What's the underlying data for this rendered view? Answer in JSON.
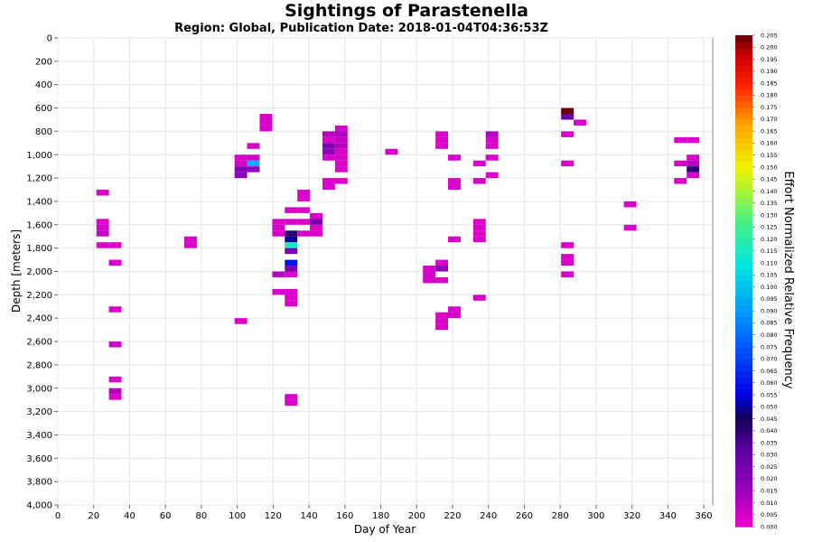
{
  "chart_data": {
    "type": "heatmap",
    "title": "Sightings of Parastenella",
    "subtitle": "Region: Global, Publication Date: 2018-01-04T04:36:53Z",
    "xlabel": "Day of Year",
    "ylabel": "Depth [meters]",
    "xlim": [
      0,
      365
    ],
    "ylim": [
      0,
      4000
    ],
    "x_ticks": [
      "0",
      "20",
      "40",
      "60",
      "80",
      "100",
      "120",
      "140",
      "160",
      "180",
      "200",
      "220",
      "240",
      "260",
      "280",
      "300",
      "320",
      "340",
      "360"
    ],
    "y_ticks": [
      "0",
      "200",
      "400",
      "600",
      "800",
      "1,000",
      "1,200",
      "1,400",
      "1,600",
      "1,800",
      "2,000",
      "2,200",
      "2,400",
      "2,600",
      "2,800",
      "3,000",
      "3,200",
      "3,400",
      "3,600",
      "3,800",
      "4,000"
    ],
    "colorbar": {
      "label": "Effort Normalized Relative Frequency",
      "min": 0.0,
      "max": 0.205,
      "ticks": [
        "0.000",
        "0.005",
        "0.010",
        "0.015",
        "0.020",
        "0.025",
        "0.030",
        "0.035",
        "0.040",
        "0.045",
        "0.050",
        "0.055",
        "0.060",
        "0.065",
        "0.070",
        "0.075",
        "0.080",
        "0.085",
        "0.090",
        "0.095",
        "0.100",
        "0.105",
        "0.110",
        "0.115",
        "0.120",
        "0.125",
        "0.130",
        "0.135",
        "0.140",
        "0.145",
        "0.150",
        "0.155",
        "0.160",
        "0.165",
        "0.170",
        "0.175",
        "0.180",
        "0.185",
        "0.190",
        "0.195",
        "0.200",
        "0.205"
      ]
    },
    "grid": true,
    "cell_size": {
      "day": 7,
      "depth": 50
    },
    "cells": [
      {
        "x": 25,
        "y": 1325,
        "v": 0.003
      },
      {
        "x": 25,
        "y": 1575,
        "v": 0.003
      },
      {
        "x": 25,
        "y": 1625,
        "v": 0.004
      },
      {
        "x": 25,
        "y": 1675,
        "v": 0.008
      },
      {
        "x": 25,
        "y": 1775,
        "v": 0.003
      },
      {
        "x": 32,
        "y": 1775,
        "v": 0.003
      },
      {
        "x": 32,
        "y": 1925,
        "v": 0.004
      },
      {
        "x": 32,
        "y": 2325,
        "v": 0.004
      },
      {
        "x": 32,
        "y": 2625,
        "v": 0.005
      },
      {
        "x": 32,
        "y": 2925,
        "v": 0.004
      },
      {
        "x": 32,
        "y": 3025,
        "v": 0.01
      },
      {
        "x": 32,
        "y": 3075,
        "v": 0.004
      },
      {
        "x": 74,
        "y": 1725,
        "v": 0.004
      },
      {
        "x": 74,
        "y": 1775,
        "v": 0.004
      },
      {
        "x": 102,
        "y": 1025,
        "v": 0.004
      },
      {
        "x": 109,
        "y": 1025,
        "v": 0.005
      },
      {
        "x": 102,
        "y": 1075,
        "v": 0.005
      },
      {
        "x": 109,
        "y": 1075,
        "v": 0.095
      },
      {
        "x": 102,
        "y": 1125,
        "v": 0.02
      },
      {
        "x": 109,
        "y": 1125,
        "v": 0.018
      },
      {
        "x": 102,
        "y": 1175,
        "v": 0.018
      },
      {
        "x": 109,
        "y": 925,
        "v": 0.004
      },
      {
        "x": 116,
        "y": 675,
        "v": 0.004
      },
      {
        "x": 116,
        "y": 725,
        "v": 0.004
      },
      {
        "x": 116,
        "y": 775,
        "v": 0.004
      },
      {
        "x": 102,
        "y": 2425,
        "v": 0.004
      },
      {
        "x": 123,
        "y": 1575,
        "v": 0.004
      },
      {
        "x": 123,
        "y": 1625,
        "v": 0.004
      },
      {
        "x": 123,
        "y": 1675,
        "v": 0.004
      },
      {
        "x": 130,
        "y": 1475,
        "v": 0.004
      },
      {
        "x": 137,
        "y": 1475,
        "v": 0.004
      },
      {
        "x": 137,
        "y": 1325,
        "v": 0.004
      },
      {
        "x": 137,
        "y": 1375,
        "v": 0.004
      },
      {
        "x": 130,
        "y": 1575,
        "v": 0.004
      },
      {
        "x": 137,
        "y": 1575,
        "v": 0.004
      },
      {
        "x": 144,
        "y": 1525,
        "v": 0.004
      },
      {
        "x": 144,
        "y": 1575,
        "v": 0.025
      },
      {
        "x": 144,
        "y": 1625,
        "v": 0.004
      },
      {
        "x": 144,
        "y": 1675,
        "v": 0.004
      },
      {
        "x": 130,
        "y": 1675,
        "v": 0.042
      },
      {
        "x": 137,
        "y": 1675,
        "v": 0.004
      },
      {
        "x": 130,
        "y": 1725,
        "v": 0.05
      },
      {
        "x": 130,
        "y": 1775,
        "v": 0.115
      },
      {
        "x": 130,
        "y": 1825,
        "v": 0.025
      },
      {
        "x": 130,
        "y": 1925,
        "v": 0.06
      },
      {
        "x": 130,
        "y": 1975,
        "v": 0.022
      },
      {
        "x": 123,
        "y": 2025,
        "v": 0.01
      },
      {
        "x": 130,
        "y": 2025,
        "v": 0.004
      },
      {
        "x": 123,
        "y": 2175,
        "v": 0.004
      },
      {
        "x": 130,
        "y": 2175,
        "v": 0.004
      },
      {
        "x": 130,
        "y": 2225,
        "v": 0.004
      },
      {
        "x": 130,
        "y": 2275,
        "v": 0.004
      },
      {
        "x": 130,
        "y": 3075,
        "v": 0.004
      },
      {
        "x": 130,
        "y": 3125,
        "v": 0.004
      },
      {
        "x": 151,
        "y": 825,
        "v": 0.01
      },
      {
        "x": 151,
        "y": 875,
        "v": 0.004
      },
      {
        "x": 151,
        "y": 925,
        "v": 0.022
      },
      {
        "x": 151,
        "y": 975,
        "v": 0.018
      },
      {
        "x": 151,
        "y": 1025,
        "v": 0.004
      },
      {
        "x": 158,
        "y": 775,
        "v": 0.004
      },
      {
        "x": 158,
        "y": 825,
        "v": 0.012
      },
      {
        "x": 158,
        "y": 875,
        "v": 0.008
      },
      {
        "x": 158,
        "y": 925,
        "v": 0.01
      },
      {
        "x": 158,
        "y": 975,
        "v": 0.004
      },
      {
        "x": 158,
        "y": 1025,
        "v": 0.004
      },
      {
        "x": 158,
        "y": 1075,
        "v": 0.004
      },
      {
        "x": 158,
        "y": 1125,
        "v": 0.004
      },
      {
        "x": 151,
        "y": 1225,
        "v": 0.004
      },
      {
        "x": 158,
        "y": 1225,
        "v": 0.004
      },
      {
        "x": 151,
        "y": 1275,
        "v": 0.004
      },
      {
        "x": 186,
        "y": 975,
        "v": 0.004
      },
      {
        "x": 207,
        "y": 1975,
        "v": 0.004
      },
      {
        "x": 207,
        "y": 2025,
        "v": 0.004
      },
      {
        "x": 207,
        "y": 2075,
        "v": 0.004
      },
      {
        "x": 214,
        "y": 1925,
        "v": 0.004
      },
      {
        "x": 214,
        "y": 1975,
        "v": 0.018
      },
      {
        "x": 214,
        "y": 2075,
        "v": 0.004
      },
      {
        "x": 214,
        "y": 825,
        "v": 0.004
      },
      {
        "x": 214,
        "y": 875,
        "v": 0.004
      },
      {
        "x": 214,
        "y": 925,
        "v": 0.004
      },
      {
        "x": 221,
        "y": 1025,
        "v": 0.004
      },
      {
        "x": 221,
        "y": 1225,
        "v": 0.004
      },
      {
        "x": 221,
        "y": 1275,
        "v": 0.004
      },
      {
        "x": 221,
        "y": 1725,
        "v": 0.004
      },
      {
        "x": 214,
        "y": 2375,
        "v": 0.004
      },
      {
        "x": 214,
        "y": 2425,
        "v": 0.004
      },
      {
        "x": 214,
        "y": 2475,
        "v": 0.004
      },
      {
        "x": 221,
        "y": 2325,
        "v": 0.004
      },
      {
        "x": 221,
        "y": 2375,
        "v": 0.004
      },
      {
        "x": 235,
        "y": 1075,
        "v": 0.004
      },
      {
        "x": 235,
        "y": 1225,
        "v": 0.004
      },
      {
        "x": 235,
        "y": 1575,
        "v": 0.004
      },
      {
        "x": 235,
        "y": 1625,
        "v": 0.004
      },
      {
        "x": 235,
        "y": 1675,
        "v": 0.004
      },
      {
        "x": 235,
        "y": 1725,
        "v": 0.004
      },
      {
        "x": 235,
        "y": 2225,
        "v": 0.004
      },
      {
        "x": 242,
        "y": 825,
        "v": 0.012
      },
      {
        "x": 242,
        "y": 875,
        "v": 0.004
      },
      {
        "x": 242,
        "y": 925,
        "v": 0.004
      },
      {
        "x": 242,
        "y": 1025,
        "v": 0.004
      },
      {
        "x": 242,
        "y": 1175,
        "v": 0.004
      },
      {
        "x": 284,
        "y": 625,
        "v": 0.205
      },
      {
        "x": 284,
        "y": 675,
        "v": 0.03
      },
      {
        "x": 291,
        "y": 725,
        "v": 0.004
      },
      {
        "x": 284,
        "y": 825,
        "v": 0.004
      },
      {
        "x": 284,
        "y": 1075,
        "v": 0.004
      },
      {
        "x": 284,
        "y": 1775,
        "v": 0.004
      },
      {
        "x": 284,
        "y": 1875,
        "v": 0.004
      },
      {
        "x": 284,
        "y": 1925,
        "v": 0.004
      },
      {
        "x": 284,
        "y": 2025,
        "v": 0.004
      },
      {
        "x": 319,
        "y": 1425,
        "v": 0.004
      },
      {
        "x": 319,
        "y": 1625,
        "v": 0.004
      },
      {
        "x": 347,
        "y": 875,
        "v": 0.004
      },
      {
        "x": 354,
        "y": 875,
        "v": 0.004
      },
      {
        "x": 347,
        "y": 1075,
        "v": 0.004
      },
      {
        "x": 354,
        "y": 1025,
        "v": 0.004
      },
      {
        "x": 354,
        "y": 1075,
        "v": 0.01
      },
      {
        "x": 354,
        "y": 1125,
        "v": 0.04
      },
      {
        "x": 354,
        "y": 1175,
        "v": 0.004
      },
      {
        "x": 347,
        "y": 1225,
        "v": 0.004
      }
    ]
  }
}
